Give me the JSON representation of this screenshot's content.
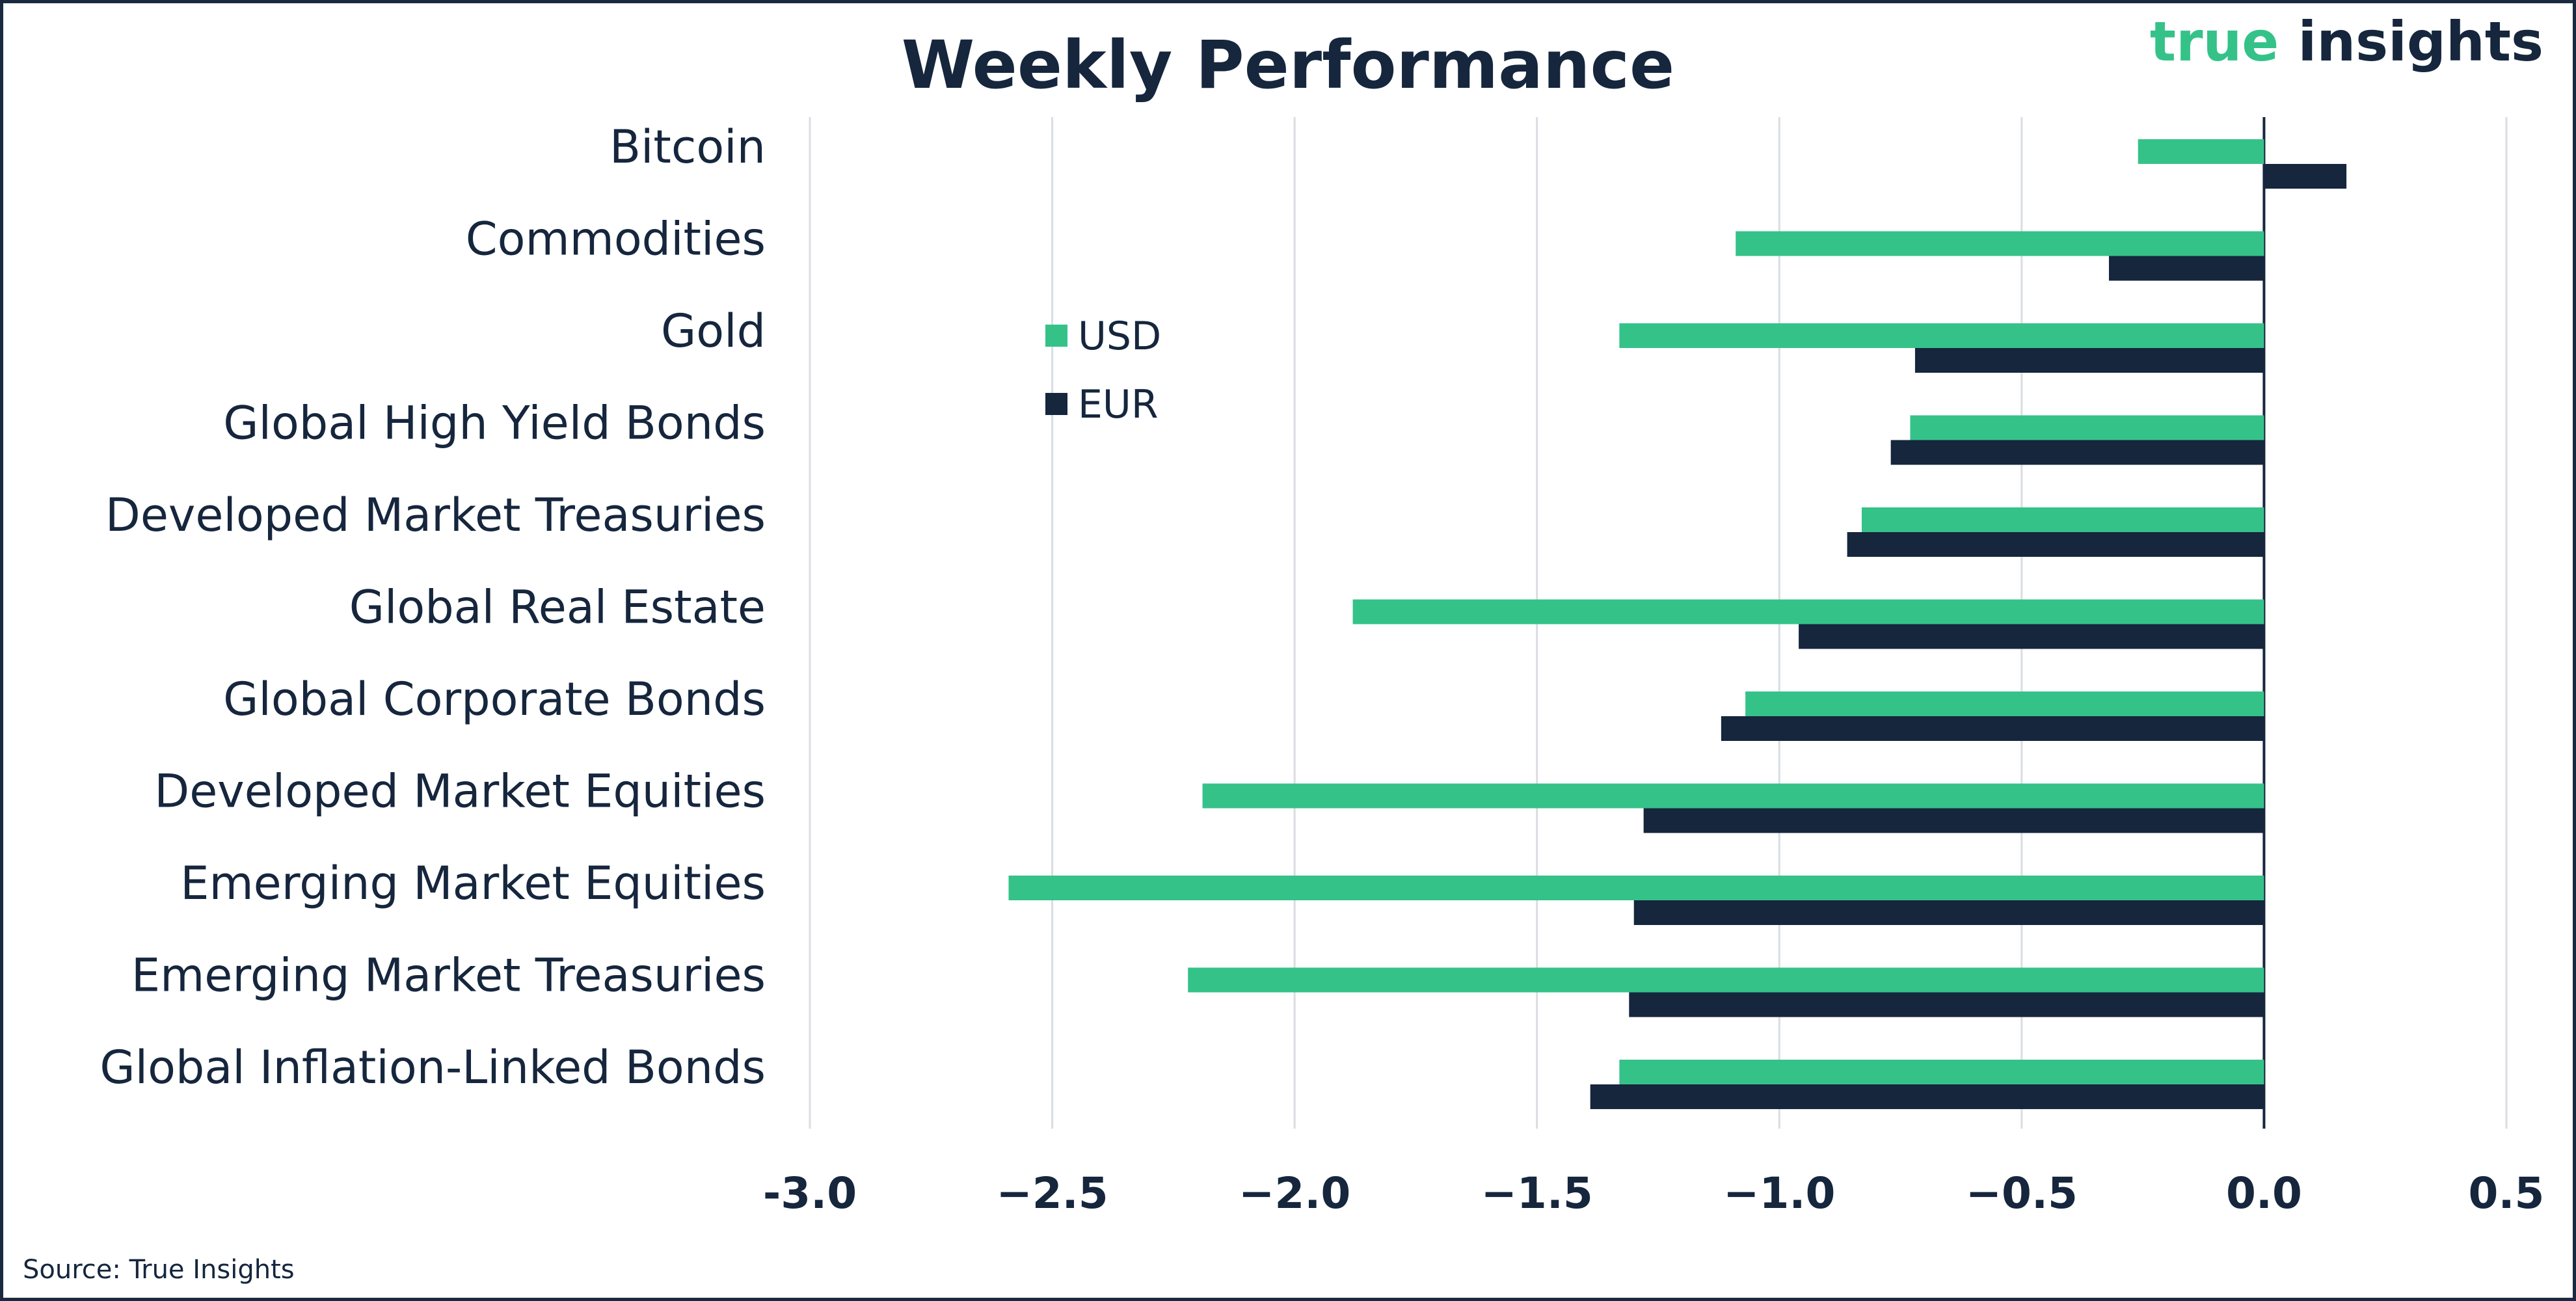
{
  "brand": {
    "part1": "true",
    "part2": " insights"
  },
  "source": "Source: True Insights",
  "chart_data": {
    "type": "bar",
    "orientation": "horizontal",
    "title": "Weekly Performance",
    "xlabel": "",
    "ylabel": "",
    "xlim": [
      -3.0,
      0.5
    ],
    "xticks": [
      -3.0,
      -2.5,
      -2.0,
      -1.5,
      -1.0,
      -0.5,
      0.0,
      0.5
    ],
    "xtick_labels": [
      "-3.0",
      "−2.5",
      "−2.0",
      "−1.5",
      "−1.0",
      "−0.5",
      "0.0",
      "0.5"
    ],
    "grid": "vertical",
    "legend_position": "upper-left",
    "categories": [
      "Bitcoin",
      "Commodities",
      "Gold",
      "Global High Yield Bonds",
      "Developed Market Treasuries",
      "Global Real Estate",
      "Global Corporate Bonds",
      "Developed Market Equities",
      "Emerging Market Equities",
      "Emerging Market Treasuries",
      "Global Inflation-Linked Bonds"
    ],
    "series": [
      {
        "name": "USD",
        "color": "#35c289",
        "values": [
          -0.26,
          -1.09,
          -1.33,
          -0.73,
          -0.83,
          -1.88,
          -1.07,
          -2.19,
          -2.59,
          -2.22,
          -1.33
        ]
      },
      {
        "name": "EUR",
        "color": "#15263d",
        "values": [
          0.17,
          -0.32,
          -0.72,
          -0.77,
          -0.86,
          -0.96,
          -1.12,
          -1.28,
          -1.3,
          -1.31,
          -1.39
        ]
      }
    ]
  }
}
